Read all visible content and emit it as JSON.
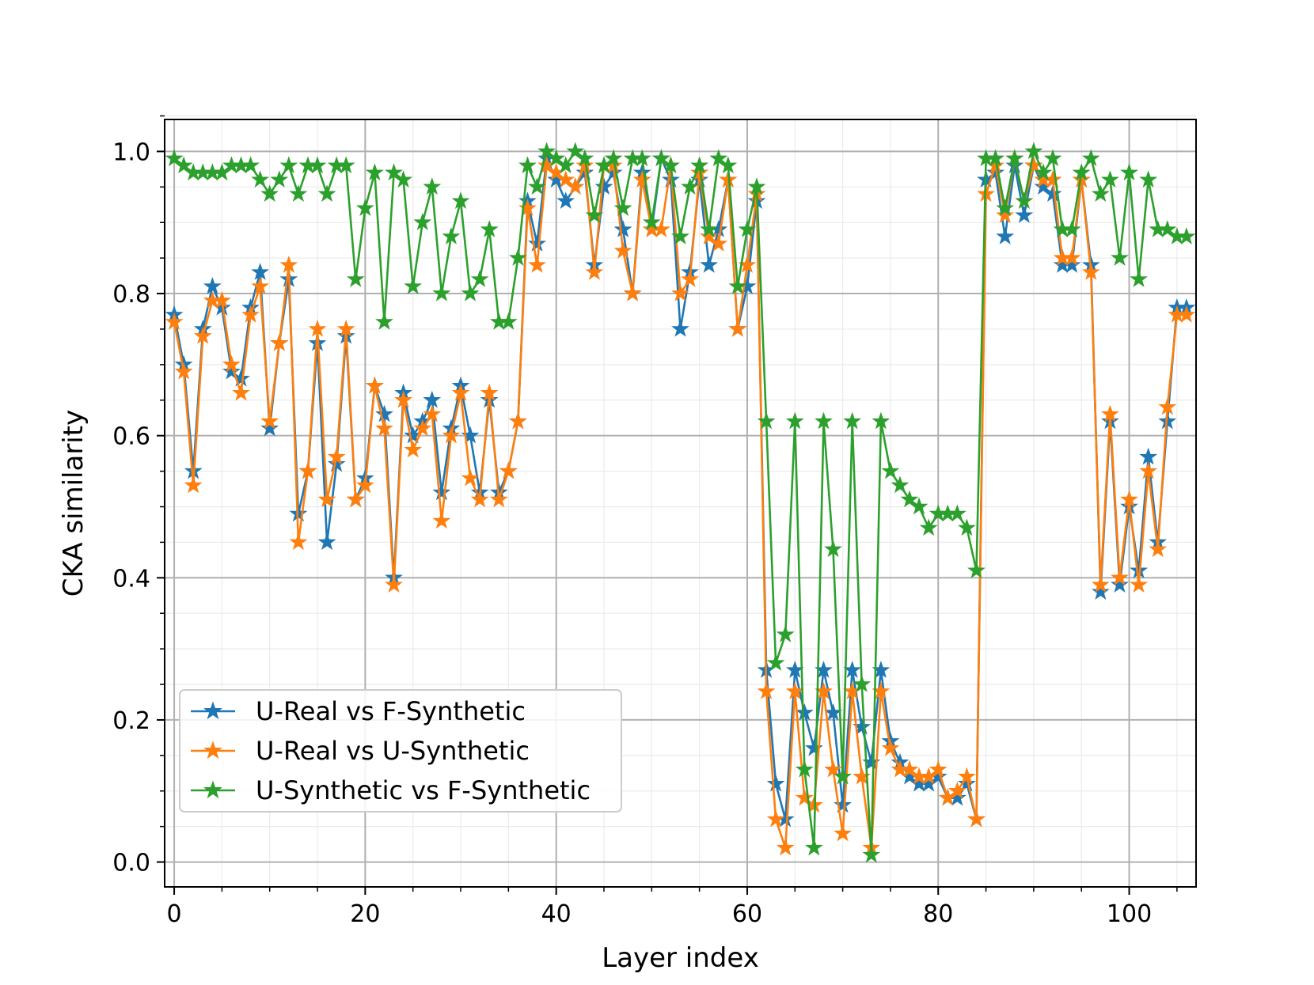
{
  "chart_data": {
    "type": "line",
    "title": "",
    "xlabel": "Layer index",
    "ylabel": "CKA similarity",
    "xlim": [
      -1,
      107
    ],
    "ylim": [
      -0.035,
      1.045
    ],
    "xticks": [
      0,
      20,
      40,
      60,
      80,
      100
    ],
    "xtick_labels": [
      "0",
      "20",
      "40",
      "60",
      "80",
      "100"
    ],
    "yticks": [
      0.0,
      0.2,
      0.4,
      0.6,
      0.8,
      1.0
    ],
    "ytick_labels": [
      "0.0",
      "0.2",
      "0.4",
      "0.6",
      "0.8",
      "1.0"
    ],
    "grid": "major and minor",
    "legend_position": "lower-left",
    "marker": "star",
    "series": [
      {
        "name": "U-Real vs F-Synthetic",
        "color": "#1f77b4",
        "values": [
          0.77,
          0.7,
          0.55,
          0.75,
          0.81,
          0.78,
          0.69,
          0.68,
          0.78,
          0.83,
          0.61,
          0.73,
          0.82,
          0.49,
          0.55,
          0.73,
          0.45,
          0.56,
          0.74,
          0.51,
          0.54,
          0.67,
          0.63,
          0.4,
          0.66,
          0.6,
          0.62,
          0.65,
          0.52,
          0.61,
          0.67,
          0.6,
          0.52,
          0.65,
          0.52,
          0.55,
          0.62,
          0.93,
          0.87,
          0.99,
          0.96,
          0.93,
          0.95,
          0.97,
          0.84,
          0.95,
          0.97,
          0.89,
          0.8,
          0.97,
          0.89,
          0.99,
          0.96,
          0.75,
          0.83,
          0.96,
          0.84,
          0.89,
          0.96,
          0.75,
          0.81,
          0.93,
          0.27,
          0.11,
          0.06,
          0.27,
          0.21,
          0.16,
          0.27,
          0.21,
          0.08,
          0.27,
          0.19,
          0.14,
          0.27,
          0.17,
          0.14,
          0.12,
          0.11,
          0.11,
          0.12,
          0.09,
          0.09,
          0.11,
          0.06,
          0.96,
          0.97,
          0.88,
          0.98,
          0.91,
          0.98,
          0.95,
          0.94,
          0.84,
          0.84,
          0.96,
          0.84,
          0.38,
          0.62,
          0.39,
          0.5,
          0.41,
          0.57,
          0.45,
          0.62,
          0.78,
          0.78
        ]
      },
      {
        "name": "U-Real vs U-Synthetic",
        "color": "#ff7f0e",
        "values": [
          0.76,
          0.69,
          0.53,
          0.74,
          0.79,
          0.79,
          0.7,
          0.66,
          0.77,
          0.81,
          0.62,
          0.73,
          0.84,
          0.45,
          0.55,
          0.75,
          0.51,
          0.57,
          0.75,
          0.51,
          0.53,
          0.67,
          0.61,
          0.39,
          0.65,
          0.58,
          0.61,
          0.63,
          0.48,
          0.6,
          0.66,
          0.54,
          0.51,
          0.66,
          0.51,
          0.55,
          0.62,
          0.92,
          0.84,
          0.98,
          0.97,
          0.96,
          0.95,
          0.98,
          0.83,
          0.98,
          0.98,
          0.86,
          0.8,
          0.96,
          0.89,
          0.89,
          0.98,
          0.8,
          0.82,
          0.97,
          0.88,
          0.87,
          0.96,
          0.75,
          0.84,
          0.94,
          0.24,
          0.06,
          0.02,
          0.24,
          0.09,
          0.08,
          0.24,
          0.13,
          0.04,
          0.24,
          0.12,
          0.02,
          0.24,
          0.16,
          0.13,
          0.13,
          0.12,
          0.12,
          0.13,
          0.09,
          0.1,
          0.12,
          0.06,
          0.94,
          0.98,
          0.91,
          0.99,
          0.93,
          0.98,
          0.96,
          0.96,
          0.85,
          0.85,
          0.96,
          0.83,
          0.39,
          0.63,
          0.4,
          0.51,
          0.39,
          0.55,
          0.44,
          0.64,
          0.77,
          0.77
        ]
      },
      {
        "name": "U-Synthetic vs F-Synthetic",
        "color": "#2ca02c",
        "values": [
          0.99,
          0.98,
          0.97,
          0.97,
          0.97,
          0.97,
          0.98,
          0.98,
          0.98,
          0.96,
          0.94,
          0.96,
          0.98,
          0.94,
          0.98,
          0.98,
          0.94,
          0.98,
          0.98,
          0.82,
          0.92,
          0.97,
          0.76,
          0.97,
          0.96,
          0.81,
          0.9,
          0.95,
          0.8,
          0.88,
          0.93,
          0.8,
          0.82,
          0.89,
          0.76,
          0.76,
          0.85,
          0.98,
          0.95,
          1.0,
          0.99,
          0.98,
          1.0,
          0.99,
          0.91,
          0.98,
          0.99,
          0.92,
          0.99,
          0.99,
          0.9,
          0.99,
          0.98,
          0.88,
          0.95,
          0.98,
          0.89,
          0.99,
          0.98,
          0.81,
          0.89,
          0.95,
          0.62,
          0.28,
          0.32,
          0.62,
          0.13,
          0.02,
          0.62,
          0.44,
          0.12,
          0.62,
          0.25,
          0.01,
          0.62,
          0.55,
          0.53,
          0.51,
          0.5,
          0.47,
          0.49,
          0.49,
          0.49,
          0.47,
          0.41,
          0.99,
          0.99,
          0.92,
          0.99,
          0.93,
          1.0,
          0.97,
          0.99,
          0.89,
          0.89,
          0.97,
          0.99,
          0.94,
          0.96,
          0.85,
          0.97,
          0.82,
          0.96,
          0.89,
          0.89,
          0.88,
          0.88
        ]
      }
    ]
  }
}
